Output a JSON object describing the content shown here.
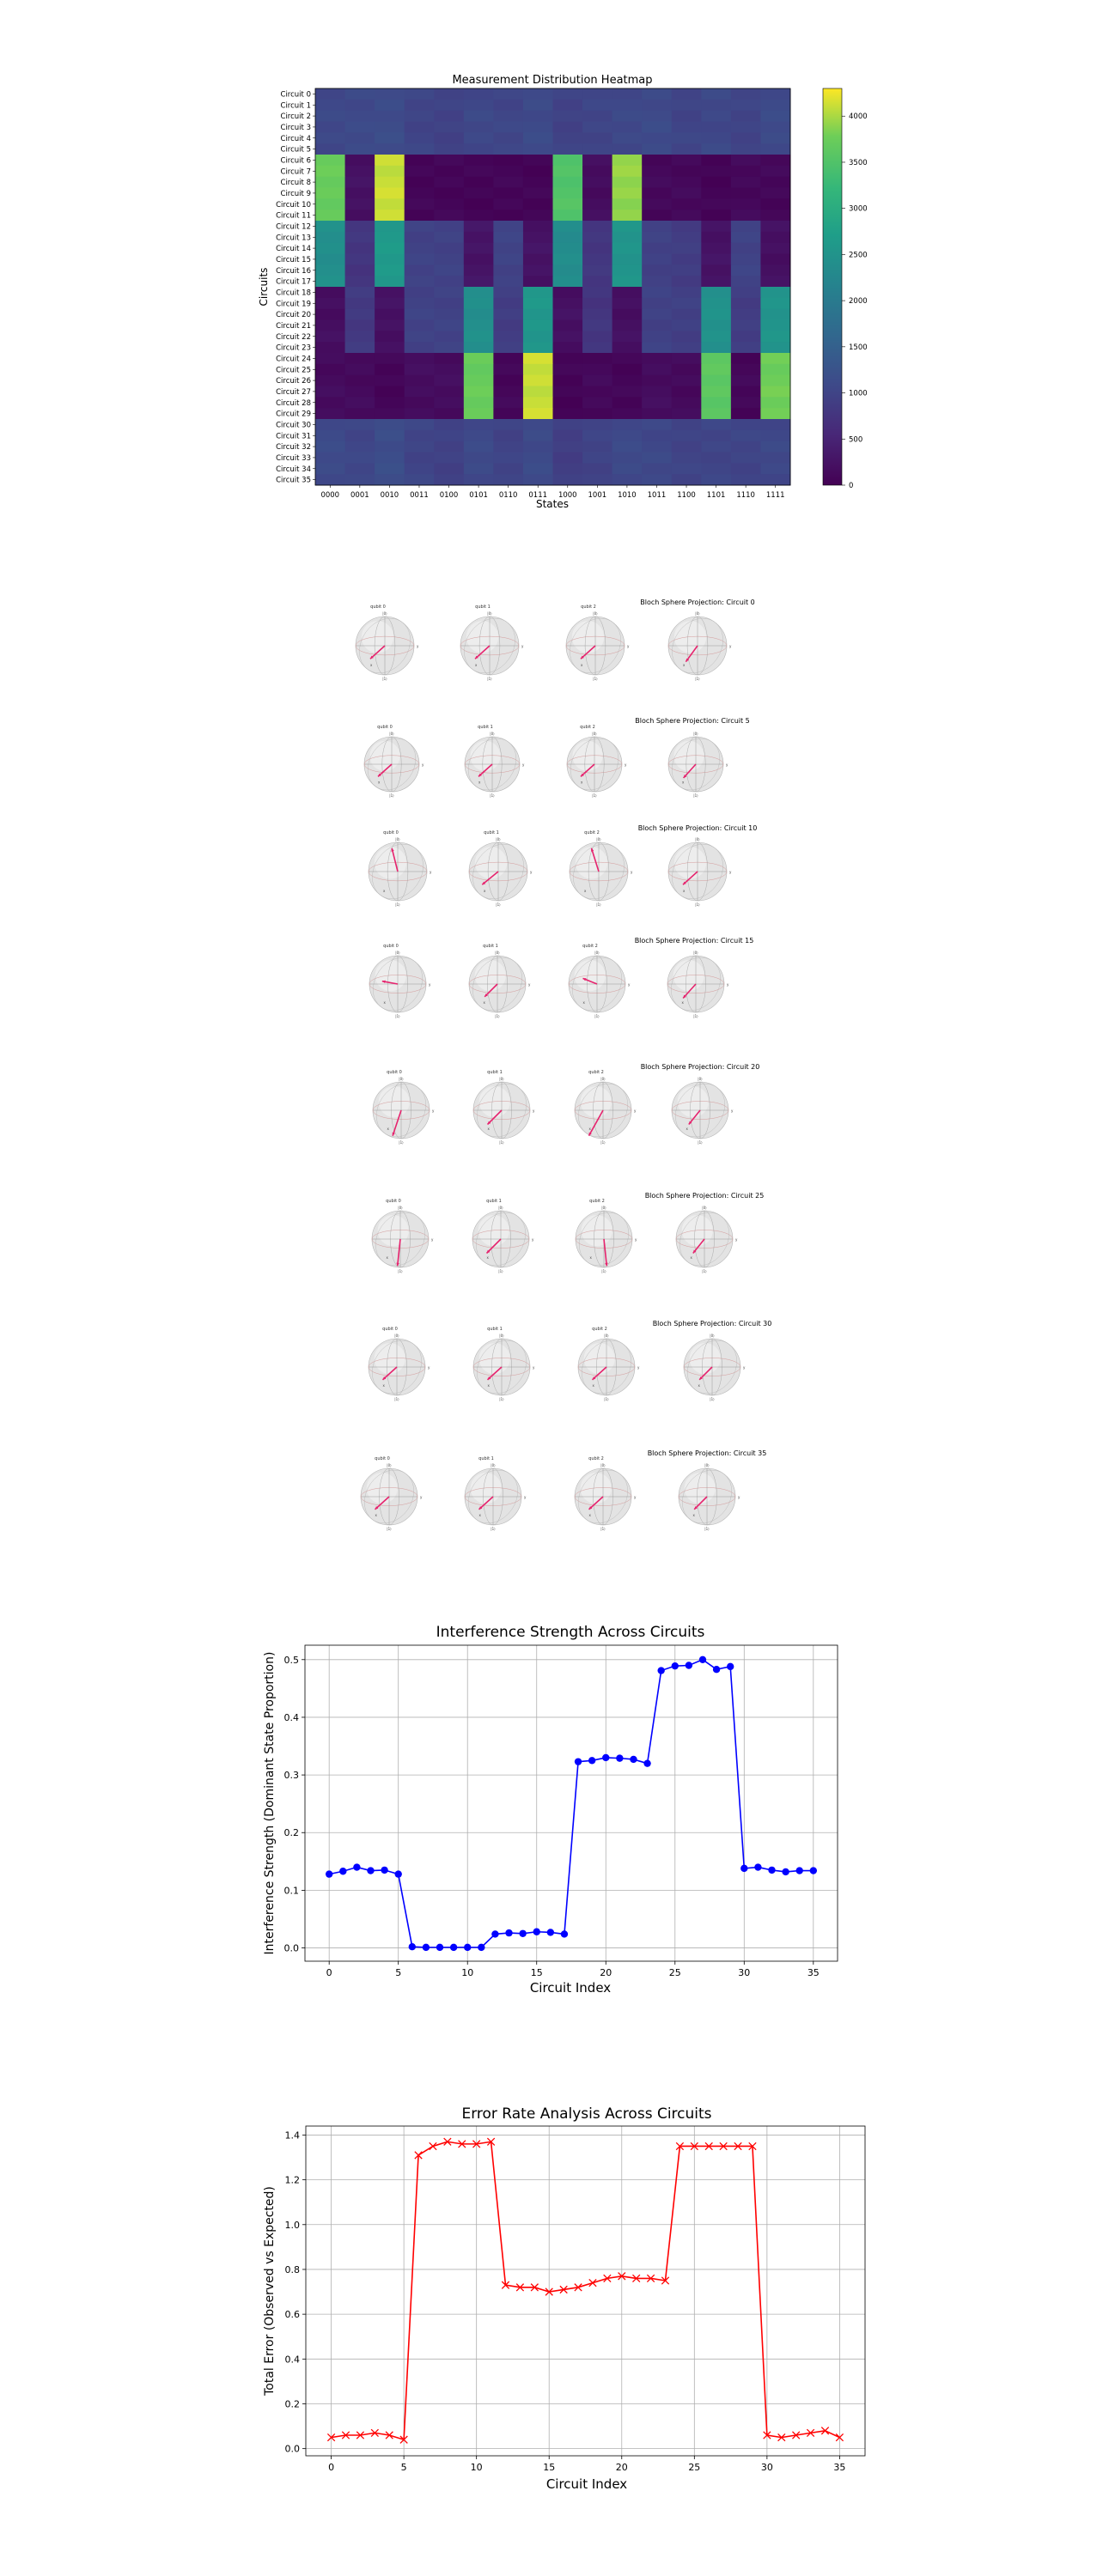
{
  "heatmap": {
    "title": "Measurement Distribution Heatmap",
    "xlabel": "States",
    "ylabel": "Circuits",
    "states": [
      "0000",
      "0001",
      "0010",
      "0011",
      "0100",
      "0101",
      "0110",
      "0111",
      "1000",
      "1001",
      "1010",
      "1011",
      "1100",
      "1101",
      "1110",
      "1111"
    ],
    "circuits": [
      "Circuit 0",
      "Circuit 1",
      "Circuit 2",
      "Circuit 3",
      "Circuit 4",
      "Circuit 5",
      "Circuit 6",
      "Circuit 7",
      "Circuit 8",
      "Circuit 9",
      "Circuit 10",
      "Circuit 11",
      "Circuit 12",
      "Circuit 13",
      "Circuit 14",
      "Circuit 15",
      "Circuit 16",
      "Circuit 17",
      "Circuit 18",
      "Circuit 19",
      "Circuit 20",
      "Circuit 21",
      "Circuit 22",
      "Circuit 23",
      "Circuit 24",
      "Circuit 25",
      "Circuit 26",
      "Circuit 27",
      "Circuit 28",
      "Circuit 29",
      "Circuit 30",
      "Circuit 31",
      "Circuit 32",
      "Circuit 33",
      "Circuit 34",
      "Circuit 35"
    ],
    "colorbar_ticks": [
      "0",
      "500",
      "1000",
      "1500",
      "2000",
      "2500",
      "3000",
      "3500",
      "4000"
    ],
    "colorbar_max": 4300
  },
  "bloch": {
    "qubit_labels": [
      "qubit 0",
      "qubit 1",
      "qubit 2",
      "qubit 3"
    ],
    "pole_labels": {
      "top": "|0⟩",
      "bottom": "|1⟩",
      "x": "x",
      "y": "y"
    },
    "panels": [
      {
        "title": "Bloch Sphere Projection: Circuit 0"
      },
      {
        "title": "Bloch Sphere Projection: Circuit 5"
      },
      {
        "title": "Bloch Sphere Projection: Circuit 10"
      },
      {
        "title": "Bloch Sphere Projection: Circuit 15"
      },
      {
        "title": "Bloch Sphere Projection: Circuit 20"
      },
      {
        "title": "Bloch Sphere Projection: Circuit 25"
      },
      {
        "title": "Bloch Sphere Projection: Circuit 30"
      },
      {
        "title": "Bloch Sphere Projection: Circuit 35"
      }
    ]
  },
  "chart_data": [
    {
      "type": "heatmap",
      "title": "Measurement Distribution Heatmap",
      "xlabel": "States",
      "ylabel": "Circuits",
      "x": [
        "0000",
        "0001",
        "0010",
        "0011",
        "0100",
        "0101",
        "0110",
        "0111",
        "1000",
        "1001",
        "1010",
        "1011",
        "1100",
        "1101",
        "1110",
        "1111"
      ],
      "y": [
        "Circuit 0",
        "Circuit 1",
        "Circuit 2",
        "Circuit 3",
        "Circuit 4",
        "Circuit 5",
        "Circuit 6",
        "Circuit 7",
        "Circuit 8",
        "Circuit 9",
        "Circuit 10",
        "Circuit 11",
        "Circuit 12",
        "Circuit 13",
        "Circuit 14",
        "Circuit 15",
        "Circuit 16",
        "Circuit 17",
        "Circuit 18",
        "Circuit 19",
        "Circuit 20",
        "Circuit 21",
        "Circuit 22",
        "Circuit 23",
        "Circuit 24",
        "Circuit 25",
        "Circuit 26",
        "Circuit 27",
        "Circuit 28",
        "Circuit 29",
        "Circuit 30",
        "Circuit 31",
        "Circuit 32",
        "Circuit 33",
        "Circuit 34",
        "Circuit 35"
      ],
      "row_groups": [
        {
          "rows": [
            0,
            5
          ],
          "values": [
            1060,
            1080,
            1120,
            1000,
            960,
            1050,
            1020,
            1100,
            960,
            1010,
            1060,
            1090,
            1000,
            1050,
            990,
            1100
          ]
        },
        {
          "rows": [
            6,
            11
          ],
          "values": [
            3700,
            220,
            4100,
            60,
            60,
            40,
            60,
            40,
            3500,
            160,
            3900,
            100,
            100,
            40,
            100,
            80
          ]
        },
        {
          "rows": [
            12,
            17
          ],
          "values": [
            2400,
            760,
            2600,
            960,
            960,
            260,
            980,
            240,
            2350,
            780,
            2500,
            940,
            880,
            240,
            980,
            200
          ]
        },
        {
          "rows": [
            18,
            23
          ],
          "values": [
            180,
            820,
            220,
            960,
            960,
            2400,
            880,
            2550,
            210,
            760,
            200,
            950,
            920,
            2450,
            880,
            2500
          ]
        },
        {
          "rows": [
            24,
            29
          ],
          "values": [
            140,
            130,
            60,
            160,
            160,
            3700,
            80,
            4100,
            40,
            100,
            60,
            160,
            120,
            3600,
            80,
            3750
          ]
        },
        {
          "rows": [
            30,
            35
          ],
          "values": [
            1100,
            1030,
            1150,
            1000,
            950,
            1080,
            980,
            1100,
            900,
            980,
            1080,
            1050,
            990,
            1010,
            1000,
            1050
          ]
        }
      ],
      "colorbar_range": [
        0,
        4300
      ]
    },
    {
      "type": "line",
      "title": "Interference Strength Across Circuits",
      "xlabel": "Circuit Index",
      "ylabel": "Interference Strength (Dominant State Proportion)",
      "x": [
        0,
        1,
        2,
        3,
        4,
        5,
        6,
        7,
        8,
        9,
        10,
        11,
        12,
        13,
        14,
        15,
        16,
        17,
        18,
        19,
        20,
        21,
        22,
        23,
        24,
        25,
        26,
        27,
        28,
        29,
        30,
        31,
        32,
        33,
        34,
        35
      ],
      "series": [
        {
          "values": [
            0.128,
            0.133,
            0.14,
            0.134,
            0.135,
            0.128,
            0.002,
            0.001,
            0.001,
            0.001,
            0.001,
            0.001,
            0.024,
            0.026,
            0.025,
            0.028,
            0.027,
            0.024,
            0.323,
            0.325,
            0.33,
            0.329,
            0.327,
            0.32,
            0.481,
            0.489,
            0.49,
            0.5,
            0.483,
            0.488,
            0.138,
            0.14,
            0.135,
            0.132,
            0.134,
            0.134
          ]
        }
      ],
      "xticks": [
        "0",
        "5",
        "10",
        "15",
        "20",
        "25",
        "30",
        "35"
      ],
      "yticks": [
        "0.0",
        "0.1",
        "0.2",
        "0.3",
        "0.4",
        "0.5"
      ],
      "xlim": [
        -1.75,
        36.75
      ],
      "ylim": [
        -0.023,
        0.525
      ],
      "color": "#0000ff",
      "marker": "circle",
      "grid": true
    },
    {
      "type": "line",
      "title": "Error Rate Analysis Across Circuits",
      "xlabel": "Circuit Index",
      "ylabel": "Total Error (Observed vs Expected)",
      "x": [
        0,
        1,
        2,
        3,
        4,
        5,
        6,
        7,
        8,
        9,
        10,
        11,
        12,
        13,
        14,
        15,
        16,
        17,
        18,
        19,
        20,
        21,
        22,
        23,
        24,
        25,
        26,
        27,
        28,
        29,
        30,
        31,
        32,
        33,
        34,
        35
      ],
      "series": [
        {
          "values": [
            0.05,
            0.06,
            0.06,
            0.07,
            0.06,
            0.04,
            1.31,
            1.35,
            1.37,
            1.36,
            1.36,
            1.37,
            0.73,
            0.72,
            0.72,
            0.7,
            0.71,
            0.72,
            0.74,
            0.76,
            0.77,
            0.76,
            0.76,
            0.75,
            1.35,
            1.35,
            1.35,
            1.35,
            1.35,
            1.35,
            0.06,
            0.05,
            0.06,
            0.07,
            0.08,
            0.05
          ]
        }
      ],
      "xticks": [
        "0",
        "5",
        "10",
        "15",
        "20",
        "25",
        "30",
        "35"
      ],
      "yticks": [
        "0.0",
        "0.2",
        "0.4",
        "0.6",
        "0.8",
        "1.0",
        "1.2",
        "1.4"
      ],
      "xlim": [
        -1.75,
        36.75
      ],
      "ylim": [
        -0.032,
        1.44
      ],
      "color": "#ff0000",
      "marker": "x",
      "grid": true
    }
  ]
}
